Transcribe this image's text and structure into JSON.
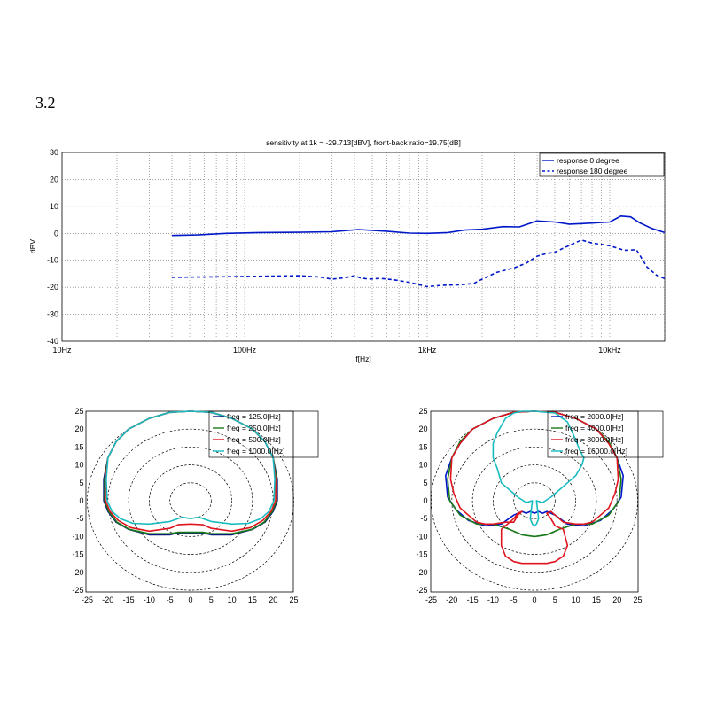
{
  "section_number": "3.2",
  "colors": {
    "blue": "#0018c8",
    "cyan": "#18bcc0",
    "green": "#1a7a1a",
    "red": "#e0141e",
    "navy": "#0a1a7a",
    "grid": "#6e6e6e"
  },
  "chart_data": [
    {
      "type": "line",
      "scale_x": "log",
      "title": "sensitivity at 1k = -29.713[dBV], front-back ratio=19.75[dB]",
      "xlabel": "f[Hz]",
      "ylabel": "dBV",
      "xlim": [
        10,
        20000
      ],
      "ylim": [
        -40,
        30
      ],
      "xtick_values": [
        10,
        100,
        1000,
        10000
      ],
      "xtick_labels": [
        "10Hz",
        "100Hz",
        "1kHz",
        "10kHz"
      ],
      "ytick_values": [
        30,
        20,
        10,
        0,
        -10,
        -20,
        -30,
        -40
      ],
      "ytick_labels": [
        "30",
        "20",
        "10",
        "0",
        "-10",
        "-20",
        "-30",
        "-40"
      ],
      "legend": {
        "position": "top-right",
        "entries": [
          "response 0 degree",
          "response 180 degree"
        ]
      },
      "series": [
        {
          "name": "response 0 degree",
          "style": "solid",
          "x": [
            40,
            55,
            80,
            120,
            200,
            300,
            420,
            600,
            800,
            1000,
            1300,
            1600,
            2000,
            2600,
            3200,
            4000,
            5000,
            6000,
            7000,
            8000,
            10000,
            11500,
            13000,
            14500,
            17000,
            20000
          ],
          "y": [
            -0.8,
            -0.6,
            0,
            0.3,
            0.4,
            0.6,
            1.4,
            0.8,
            0.1,
            0,
            0.3,
            1.2,
            1.5,
            2.5,
            2.4,
            4.6,
            4.2,
            3.4,
            3.6,
            3.8,
            4.2,
            6.4,
            6.1,
            4.0,
            1.8,
            0.3
          ]
        },
        {
          "name": "response 180 degree",
          "style": "dashed",
          "x": [
            40,
            100,
            200,
            260,
            300,
            350,
            400,
            430,
            480,
            550,
            650,
            800,
            1000,
            1200,
            1500,
            1800,
            2000,
            2400,
            3000,
            3500,
            4000,
            4500,
            5000,
            6000,
            7000,
            8000,
            10000,
            12000,
            14000,
            16000,
            18000,
            20000
          ],
          "y": [
            -16.3,
            -16.0,
            -15.7,
            -16.2,
            -17.0,
            -16.5,
            -15.7,
            -16.5,
            -17.0,
            -16.7,
            -17.2,
            -18.2,
            -19.8,
            -19.3,
            -19.1,
            -18.6,
            -17.0,
            -14.5,
            -12.8,
            -11.0,
            -8.5,
            -7.5,
            -7.0,
            -4.5,
            -2.5,
            -3.6,
            -4.6,
            -6.3,
            -6.1,
            -12.5,
            -15.5,
            -16.8
          ]
        }
      ]
    },
    {
      "type": "polar",
      "xlim": [
        -25,
        25
      ],
      "ylim": [
        -25,
        25
      ],
      "xtick_labels": [
        "-25",
        "-20",
        "-15",
        "-10",
        "-5",
        "0",
        "5",
        "10",
        "15",
        "20",
        "25"
      ],
      "ytick_labels": [
        "25",
        "20",
        "15",
        "10",
        "5",
        "0",
        "-5",
        "-10",
        "-15",
        "-20",
        "-25"
      ],
      "legend": {
        "position": "top-right",
        "entries": [
          "freq = 125.0[Hz]",
          "freq = 250.0[Hz]",
          "freq = 500.0[Hz]",
          "freq = 1000.0[Hz]"
        ]
      },
      "series": [
        {
          "name": "freq = 125.0[Hz]",
          "x": [
            0,
            5,
            10,
            15,
            18,
            20,
            21,
            21,
            20,
            18,
            15,
            10,
            5,
            3,
            0,
            -3,
            -5,
            -10,
            -15,
            -18,
            -20,
            -21,
            -21,
            -20,
            -18,
            -15,
            -10,
            -5,
            0
          ],
          "y": [
            25,
            24.7,
            23,
            20,
            16.5,
            12,
            6,
            0,
            -3,
            -6,
            -8,
            -9.5,
            -9.5,
            -9,
            -9,
            -9,
            -9.5,
            -9.5,
            -8,
            -6,
            -3,
            0,
            6,
            12,
            16.5,
            20,
            23,
            24.7,
            25
          ]
        },
        {
          "name": "freq = 250.0[Hz]",
          "x": [
            0,
            5,
            10,
            15,
            18,
            20,
            20.8,
            20.8,
            19.8,
            17.8,
            14.8,
            10,
            5,
            3,
            0,
            -3,
            -5,
            -10,
            -14.8,
            -17.8,
            -19.8,
            -20.8,
            -20.8,
            -20,
            -18,
            -15,
            -10,
            -5,
            0
          ],
          "y": [
            25,
            24.7,
            23,
            20,
            16.5,
            12,
            6,
            0,
            -3,
            -6,
            -8,
            -9.2,
            -9.2,
            -8.8,
            -8.8,
            -8.8,
            -9.2,
            -9.2,
            -8,
            -6,
            -3,
            0,
            6,
            12,
            16.5,
            20,
            23,
            24.7,
            25
          ]
        },
        {
          "name": "freq = 500.0[Hz]",
          "x": [
            0,
            5,
            10,
            15,
            18,
            20,
            20.6,
            20.6,
            19.5,
            17.5,
            14.5,
            10,
            5,
            3,
            0,
            -3,
            -5,
            -10,
            -14.5,
            -17.5,
            -19.5,
            -20.6,
            -20.6,
            -20,
            -18,
            -15,
            -10,
            -5,
            0
          ],
          "y": [
            25,
            24.7,
            23,
            20,
            16.5,
            12,
            6,
            0,
            -3,
            -5.5,
            -7.5,
            -8.5,
            -7.7,
            -6.7,
            -6.5,
            -6.7,
            -7.7,
            -8.5,
            -7.5,
            -5.5,
            -3,
            0,
            6,
            12,
            16.5,
            20,
            23,
            24.7,
            25
          ]
        },
        {
          "name": "freq = 1000.0[Hz]",
          "x": [
            0,
            5,
            10,
            15,
            18,
            20,
            20.4,
            20.2,
            19,
            17,
            14,
            10,
            5,
            2,
            0,
            -2,
            -5,
            -10,
            -14,
            -17,
            -19,
            -20.2,
            -20.4,
            -20,
            -18,
            -15,
            -10,
            -5,
            0
          ],
          "y": [
            25,
            24.7,
            23,
            20,
            16.5,
            12,
            6,
            0,
            -3,
            -5,
            -6.3,
            -6.5,
            -5.8,
            -4.6,
            -5,
            -4.6,
            -5.8,
            -6.5,
            -6.3,
            -5,
            -3,
            0,
            6,
            12,
            16.5,
            20,
            23,
            24.7,
            25
          ]
        }
      ]
    },
    {
      "type": "polar",
      "xlim": [
        -25,
        25
      ],
      "ylim": [
        -25,
        25
      ],
      "xtick_labels": [
        "-25",
        "-20",
        "-15",
        "-10",
        "-5",
        "0",
        "5",
        "10",
        "15",
        "20",
        "25"
      ],
      "ytick_labels": [
        "25",
        "20",
        "15",
        "10",
        "5",
        "0",
        "-5",
        "-10",
        "-15",
        "-20",
        "-25"
      ],
      "legend": {
        "position": "top-right",
        "entries": [
          "freq = 2000.0[Hz]",
          "freq = 4000.0[Hz]",
          "freq = 8000.0[Hz]",
          "freq = 16000.0[Hz]"
        ]
      },
      "series": [
        {
          "name": "freq = 2000.0[Hz]",
          "x": [
            0,
            5,
            10,
            15,
            18,
            20,
            21.5,
            21,
            19,
            16,
            12,
            8,
            5,
            3,
            2,
            1,
            0,
            -1,
            -2,
            -3,
            -5,
            -8,
            -12,
            -16,
            -19,
            -21,
            -21.5,
            -20,
            -18,
            -15,
            -10,
            -5,
            0
          ],
          "y": [
            25,
            24.7,
            23,
            20,
            16,
            12,
            7,
            1,
            -2.5,
            -5.5,
            -7,
            -6.5,
            -4,
            -3,
            -3.5,
            -3,
            -3.5,
            -3,
            -3.5,
            -3,
            -4,
            -6.5,
            -7,
            -5.5,
            -2.5,
            1,
            7,
            12,
            16,
            20,
            23,
            24.7,
            25
          ]
        },
        {
          "name": "freq = 4000.0[Hz]",
          "x": [
            0,
            5,
            10,
            15,
            18,
            20,
            21,
            20.5,
            18,
            14,
            10,
            6,
            3,
            0,
            -3,
            -6,
            -10,
            -14,
            -18,
            -20.5,
            -21,
            -20,
            -18,
            -15,
            -10,
            -5,
            0
          ],
          "y": [
            25,
            24.7,
            23,
            20,
            16.5,
            12,
            6,
            0,
            -4,
            -6.5,
            -6.5,
            -8,
            -9.5,
            -10,
            -9.5,
            -8,
            -6.5,
            -6.5,
            -4,
            0,
            6,
            12,
            16.5,
            20,
            23,
            24.7,
            25
          ]
        },
        {
          "name": "freq = 8000.0[Hz]",
          "x": [
            0,
            5,
            10,
            15,
            18,
            20,
            20.3,
            19.5,
            18,
            16,
            14,
            12,
            10,
            7,
            5,
            4,
            3,
            4,
            5,
            7,
            8,
            7,
            5,
            3,
            0,
            -3,
            -5,
            -7,
            -8,
            -8,
            -7,
            -5,
            -4,
            -3,
            -4,
            -5,
            -7,
            -10,
            -12,
            -14,
            -16,
            -18,
            -19.5,
            -20.3,
            -20,
            -18,
            -15,
            -10,
            -5,
            0
          ],
          "y": [
            25,
            24.7,
            23,
            20,
            16,
            12,
            6,
            2,
            -2,
            -4,
            -6,
            -6.5,
            -6.5,
            -6,
            -4,
            -3,
            -3.5,
            -5,
            -7,
            -8,
            -12.5,
            -15.5,
            -17,
            -17.5,
            -17.5,
            -17.5,
            -17,
            -15.5,
            -12.5,
            -8,
            -7,
            -5,
            -3.5,
            -3,
            -4,
            -6,
            -6,
            -6.5,
            -6.5,
            -6,
            -4,
            -2,
            2,
            6,
            12,
            16,
            20,
            23,
            24.7,
            25
          ]
        },
        {
          "name": "freq = 16000.0[Hz]",
          "x": [
            0,
            5,
            8,
            10,
            11,
            12,
            11.5,
            10,
            8,
            6,
            4,
            2,
            0.5,
            1,
            0.5,
            0,
            -0.5,
            -1,
            -0.5,
            -2,
            -4,
            -6,
            -8,
            -9,
            -10,
            -10,
            -9,
            -8,
            -7,
            -5,
            -3,
            0
          ],
          "y": [
            25,
            24.5,
            22,
            17,
            14,
            12,
            10,
            7,
            5,
            3,
            1,
            -0.5,
            0,
            -5,
            -6.5,
            -7,
            -6.5,
            -5,
            0,
            -0.5,
            1,
            3,
            5,
            9,
            12,
            16,
            19,
            21,
            23,
            24.5,
            25,
            25
          ]
        }
      ]
    }
  ]
}
